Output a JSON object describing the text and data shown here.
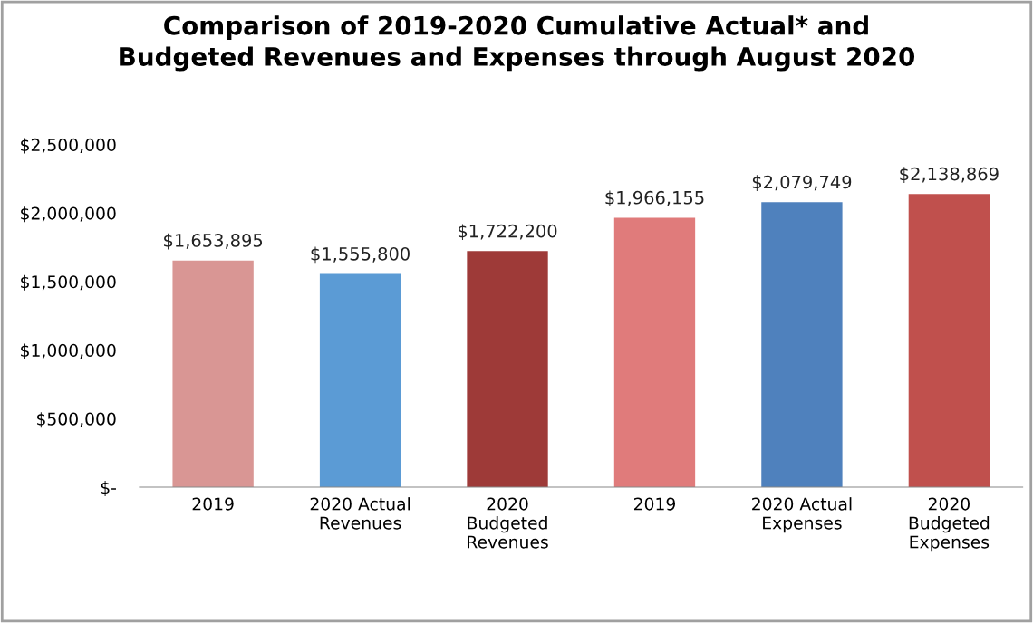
{
  "chart_data": {
    "type": "bar",
    "title": "Comparison of 2019-2020 Cumulative Actual* and\nBudgeted Revenues and Expenses through August 2020",
    "categories": [
      "2019",
      "2020 Actual\nRevenues",
      "2020\nBudgeted\nRevenues",
      "2019",
      "2020 Actual\nExpenses",
      "2020\nBudgeted\nExpenses"
    ],
    "values": [
      1653895,
      1555800,
      1722200,
      1966155,
      2079749,
      2138869
    ],
    "colors": [
      "#d99694",
      "#5b9bd5",
      "#9e3a38",
      "#e07b7b",
      "#4f81bd",
      "#c0504d"
    ],
    "value_labels": [
      "$1,653,895",
      "$1,555,800",
      "$1,722,200",
      "$1,966,155",
      "$2,079,749",
      "$2,138,869"
    ],
    "ylim": [
      0,
      2500000
    ],
    "yticks": [
      {
        "value": 0,
        "label": "$-"
      },
      {
        "value": 500000,
        "label": "$500,000"
      },
      {
        "value": 1000000,
        "label": "$1,000,000"
      },
      {
        "value": 1500000,
        "label": "$1,500,000"
      },
      {
        "value": 2000000,
        "label": "$2,000,000"
      },
      {
        "value": 2500000,
        "label": "$2,500,000"
      }
    ],
    "grid": false,
    "legend": false
  }
}
